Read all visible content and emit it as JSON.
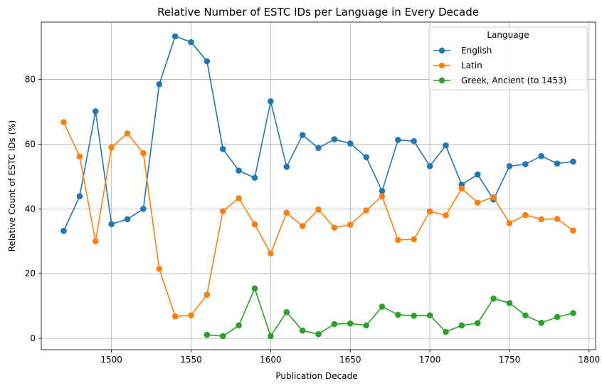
{
  "chart_data": {
    "type": "line",
    "title": "Relative Number of ESTC IDs per Language in Every Decade",
    "xlabel": "Publication Decade",
    "ylabel": "Relative Count of ESTC IDs (%)",
    "xlim": [
      1455.9,
      1804.1
    ],
    "ylim": [
      -3.5,
      97.7
    ],
    "xticks": [
      1500,
      1550,
      1600,
      1650,
      1700,
      1750,
      1800
    ],
    "yticks": [
      0,
      20,
      40,
      60,
      80
    ],
    "grid": true,
    "legend": {
      "title": "Language",
      "position": "top-right"
    },
    "series": [
      {
        "name": "English",
        "color": "#1f77b4",
        "x": [
          1470,
          1480,
          1490,
          1500,
          1510,
          1520,
          1530,
          1540,
          1550,
          1560,
          1570,
          1580,
          1590,
          1600,
          1610,
          1620,
          1630,
          1640,
          1650,
          1660,
          1670,
          1680,
          1690,
          1700,
          1710,
          1720,
          1730,
          1740,
          1750,
          1760,
          1770,
          1780,
          1790
        ],
        "values": [
          33.2,
          43.9,
          70.1,
          35.3,
          36.8,
          40.0,
          78.5,
          93.3,
          91.5,
          85.6,
          58.5,
          51.8,
          49.6,
          73.2,
          53.0,
          62.8,
          58.8,
          61.5,
          60.2,
          56.0,
          45.5,
          61.3,
          60.9,
          53.2,
          59.6,
          47.5,
          50.6,
          42.9,
          53.2,
          53.8,
          56.3,
          54.0,
          54.6
        ]
      },
      {
        "name": "Latin",
        "color": "#ff7f0e",
        "x": [
          1470,
          1480,
          1490,
          1500,
          1510,
          1520,
          1530,
          1540,
          1550,
          1560,
          1570,
          1580,
          1590,
          1600,
          1610,
          1620,
          1630,
          1640,
          1650,
          1660,
          1670,
          1680,
          1690,
          1700,
          1710,
          1720,
          1730,
          1740,
          1750,
          1760,
          1770,
          1780,
          1790
        ],
        "values": [
          66.8,
          56.2,
          30.0,
          59.0,
          63.3,
          57.2,
          21.5,
          6.8,
          7.1,
          13.5,
          39.3,
          43.3,
          35.2,
          26.2,
          38.8,
          34.7,
          39.8,
          34.2,
          35.1,
          39.5,
          43.9,
          30.4,
          30.6,
          39.2,
          38.0,
          46.3,
          41.9,
          43.6,
          35.6,
          38.1,
          36.8,
          36.9,
          33.3
        ]
      },
      {
        "name": "Greek, Ancient (to 1453)",
        "color": "#2ca02c",
        "x": [
          1560,
          1570,
          1580,
          1590,
          1600,
          1610,
          1620,
          1630,
          1640,
          1650,
          1660,
          1670,
          1680,
          1690,
          1700,
          1710,
          1720,
          1730,
          1740,
          1750,
          1760,
          1770,
          1780,
          1790
        ],
        "values": [
          1.1,
          0.7,
          4.0,
          15.4,
          0.7,
          8.1,
          2.4,
          1.3,
          4.4,
          4.6,
          4.0,
          9.8,
          7.3,
          7.0,
          7.1,
          2.0,
          4.0,
          4.7,
          12.3,
          10.9,
          7.1,
          4.8,
          6.6,
          7.8
        ]
      }
    ]
  }
}
